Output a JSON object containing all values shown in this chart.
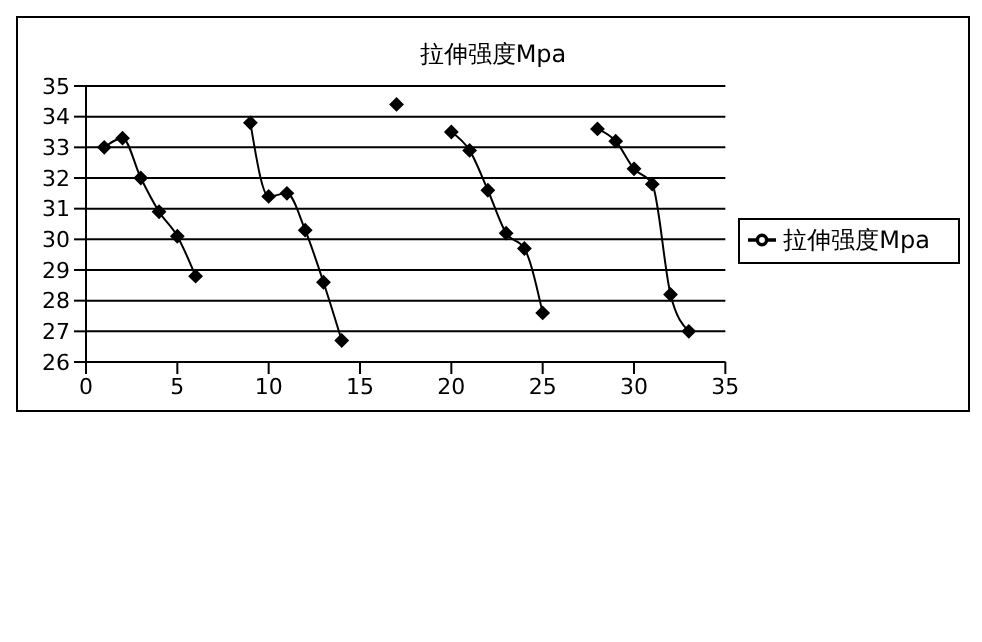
{
  "chart_data": {
    "type": "line",
    "title": "拉伸强度Mpa",
    "x": [
      1,
      2,
      3,
      4,
      5,
      6,
      7,
      8,
      9,
      10,
      11,
      12,
      13,
      14,
      15,
      16,
      17,
      18,
      19,
      20,
      21,
      22,
      23,
      24,
      25,
      26,
      27,
      28,
      29,
      30,
      31,
      32,
      33
    ],
    "series": [
      {
        "name": "拉伸强度Mpa",
        "color": "#000000",
        "values": [
          33.0,
          33.3,
          32.0,
          30.9,
          30.1,
          28.8,
          null,
          null,
          33.8,
          31.4,
          31.5,
          30.3,
          28.6,
          26.7,
          null,
          null,
          34.4,
          null,
          null,
          33.5,
          32.9,
          31.6,
          30.2,
          29.7,
          27.6,
          null,
          null,
          33.6,
          33.2,
          32.3,
          31.8,
          28.2,
          27.0
        ]
      }
    ],
    "xlim": [
      0,
      35
    ],
    "xticks": [
      0,
      5,
      10,
      15,
      20,
      25,
      30,
      35
    ],
    "ylim": [
      26,
      35
    ],
    "yticks": [
      26,
      27,
      28,
      29,
      30,
      31,
      32,
      33,
      34,
      35
    ],
    "grid": "y",
    "legend": "right",
    "marker": "diamond",
    "line_style": "solid"
  }
}
